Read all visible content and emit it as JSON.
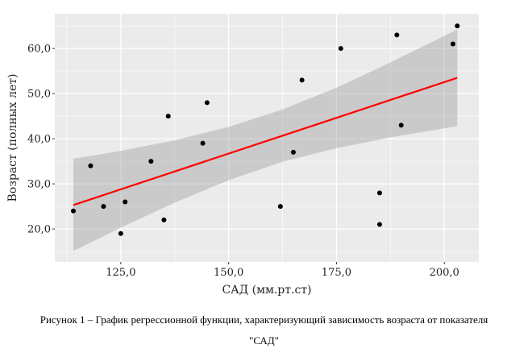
{
  "chart_data": {
    "type": "scatter",
    "xlabel": "САД (мм.рт.ст)",
    "ylabel": "Возраст (полных лет)",
    "xlim": [
      109.7,
      208
    ],
    "ylim": [
      12.7,
      67.7
    ],
    "x_ticks": [
      125,
      150,
      175,
      200
    ],
    "x_tick_labels": [
      "125,0",
      "150,0",
      "175,0",
      "200,0"
    ],
    "y_ticks": [
      20,
      30,
      40,
      50,
      60
    ],
    "y_tick_labels": [
      "20,0",
      "30,0",
      "40,0",
      "50,0",
      "60,0"
    ],
    "grid": true,
    "points": [
      {
        "x": 114,
        "y": 24
      },
      {
        "x": 118,
        "y": 34
      },
      {
        "x": 121,
        "y": 25
      },
      {
        "x": 125,
        "y": 19
      },
      {
        "x": 126,
        "y": 26
      },
      {
        "x": 132,
        "y": 35
      },
      {
        "x": 135,
        "y": 22
      },
      {
        "x": 136,
        "y": 45
      },
      {
        "x": 144,
        "y": 39
      },
      {
        "x": 145,
        "y": 48
      },
      {
        "x": 162,
        "y": 25
      },
      {
        "x": 165,
        "y": 37
      },
      {
        "x": 167,
        "y": 53
      },
      {
        "x": 176,
        "y": 60
      },
      {
        "x": 185,
        "y": 28
      },
      {
        "x": 185,
        "y": 21
      },
      {
        "x": 189,
        "y": 63
      },
      {
        "x": 190,
        "y": 43
      },
      {
        "x": 202,
        "y": 61
      },
      {
        "x": 203,
        "y": 65
      }
    ],
    "regression_line": {
      "x": [
        114,
        203
      ],
      "y": [
        25.3,
        53.5
      ],
      "color": "#ff0000"
    },
    "confidence_band": {
      "x": [
        114,
        125,
        137.5,
        150,
        162.5,
        175,
        187.5,
        203
      ],
      "lower": [
        15.1,
        20.3,
        25.85,
        30.8,
        34.9,
        37.9,
        40.3,
        42.8
      ],
      "upper": [
        35.55,
        37.3,
        39.65,
        42.6,
        46.5,
        51.3,
        56.9,
        64.2
      ]
    },
    "colors": {
      "panel": "#ebebeb",
      "grid": "#ffffff",
      "band": "#bdbdbd",
      "point": "#000000"
    }
  },
  "caption": {
    "line1": "Рисунок 1 – График регрессионной функции, характеризующий зависимость возраста от показателя",
    "line2": "\"САД\""
  }
}
